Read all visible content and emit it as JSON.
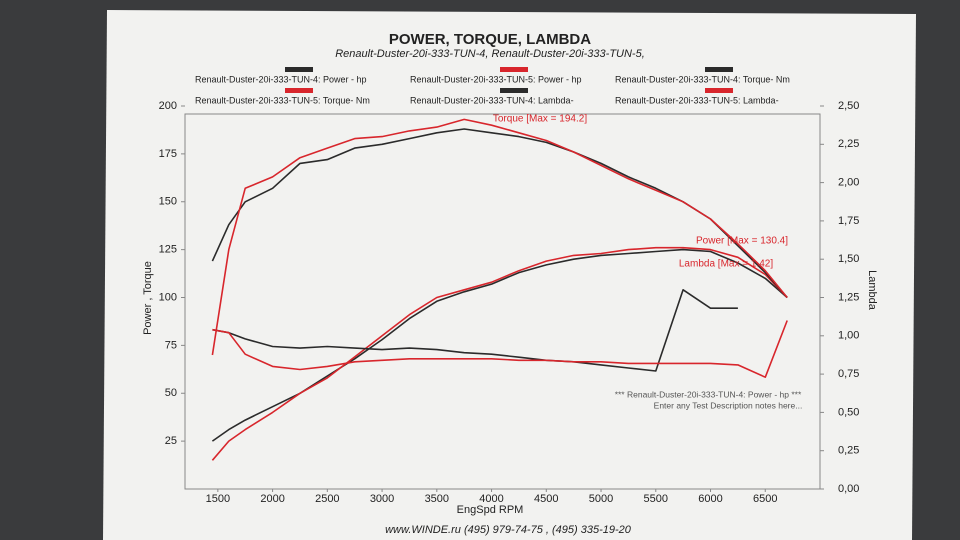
{
  "chart_data": {
    "type": "line",
    "title": "POWER, TORQUE, LAMBDA",
    "subtitle": "Renault-Duster-20i-333-TUN-4, Renault-Duster-20i-333-TUN-5,",
    "x_label": "EngSpd  RPM",
    "y_label": "Power , Torque",
    "y2_label": "Lambda",
    "x": [
      1450,
      1600,
      1750,
      2000,
      2250,
      2500,
      2750,
      3000,
      3250,
      3500,
      3750,
      4000,
      4250,
      4500,
      4750,
      5000,
      5250,
      5500,
      5750,
      6000,
      6250,
      6500,
      6700
    ],
    "xlim": [
      1200,
      7000
    ],
    "xticks": [
      1500,
      2000,
      2500,
      3000,
      3500,
      4000,
      4500,
      5000,
      5500,
      6000,
      6500
    ],
    "ylim": [
      0,
      200
    ],
    "yticks": [
      25,
      50,
      75,
      100,
      125,
      150,
      175,
      200
    ],
    "y2lim": [
      0,
      2.5
    ],
    "y2ticks": [
      {
        "value": 0,
        "label": "0,00"
      },
      {
        "value": 0.25,
        "label": "0,25"
      },
      {
        "value": 0.5,
        "label": "0,50"
      },
      {
        "value": 0.75,
        "label": "0,75"
      },
      {
        "value": 1,
        "label": "1,00"
      },
      {
        "value": 1.25,
        "label": "1,25"
      },
      {
        "value": 1.5,
        "label": "1,50"
      },
      {
        "value": 1.75,
        "label": "1,75"
      },
      {
        "value": 2,
        "label": "2,00"
      },
      {
        "value": 2.25,
        "label": "2,25"
      },
      {
        "value": 2.5,
        "label": "2,50"
      }
    ],
    "grid": false,
    "series": [
      {
        "name": "Renault-Duster-20i-333-TUN-4: Power -  hp",
        "color": "#2b2b2b",
        "values": [
          25,
          31,
          36,
          43,
          50,
          59,
          68,
          78,
          89,
          98,
          103,
          107,
          113,
          117,
          120,
          122,
          123,
          124,
          125,
          124,
          118,
          110,
          100
        ]
      },
      {
        "name": "Renault-Duster-20i-333-TUN-5: Power -  hp",
        "color": "#d8262c",
        "values": [
          15,
          25,
          31,
          40,
          50,
          58,
          69,
          80,
          91,
          100,
          104,
          108,
          114,
          119,
          122,
          123,
          125,
          126,
          126,
          125,
          121,
          112,
          100
        ]
      },
      {
        "name": "Renault-Duster-20i-333-TUN-4: Torque-  Nm",
        "color": "#2b2b2b",
        "values": [
          119,
          138,
          150,
          157,
          170,
          172,
          178,
          180,
          183,
          186,
          188,
          186,
          184,
          181,
          176,
          170,
          163,
          157,
          150,
          141,
          127,
          113,
          100
        ]
      },
      {
        "name": "Renault-Duster-20i-333-TUN-5: Torque-  Nm",
        "color": "#d8262c",
        "values": [
          70,
          125,
          157,
          163,
          173,
          178,
          183,
          184,
          187,
          189,
          193,
          190,
          186,
          182,
          176,
          169,
          162,
          156,
          150,
          141,
          128,
          114,
          100
        ]
      },
      {
        "name": "Renault-Duster-20i-333-TUN-4: Lambda-",
        "color": "#2b2b2b",
        "axis": "y2",
        "values": [
          1.04,
          1.02,
          0.98,
          0.93,
          0.92,
          0.93,
          0.92,
          0.91,
          0.92,
          0.91,
          0.89,
          0.88,
          0.86,
          0.84,
          0.83,
          0.81,
          0.79,
          0.77,
          1.3,
          1.18,
          1.18,
          null,
          null
        ]
      },
      {
        "name": "Renault-Duster-20i-333-TUN-5: Lambda-",
        "color": "#d8262c",
        "axis": "y2",
        "values": [
          1.04,
          1.02,
          0.88,
          0.8,
          0.78,
          0.8,
          0.83,
          0.84,
          0.85,
          0.85,
          0.85,
          0.85,
          0.84,
          0.84,
          0.83,
          0.83,
          0.82,
          0.82,
          0.82,
          0.82,
          0.81,
          0.73,
          1.1
        ]
      }
    ],
    "annotations": [
      "Torque [Max = 194.2]",
      "Power  [Max = 130.4]",
      "Lambda [Max = 1.42]",
      "*** Renault-Duster-20i-333-TUN-4: Power - hp ***",
      "Enter any Test Description notes here..."
    ],
    "footer": "www.WINDE.ru   (495) 979-74-75 ,  (495) 335-19-20"
  }
}
